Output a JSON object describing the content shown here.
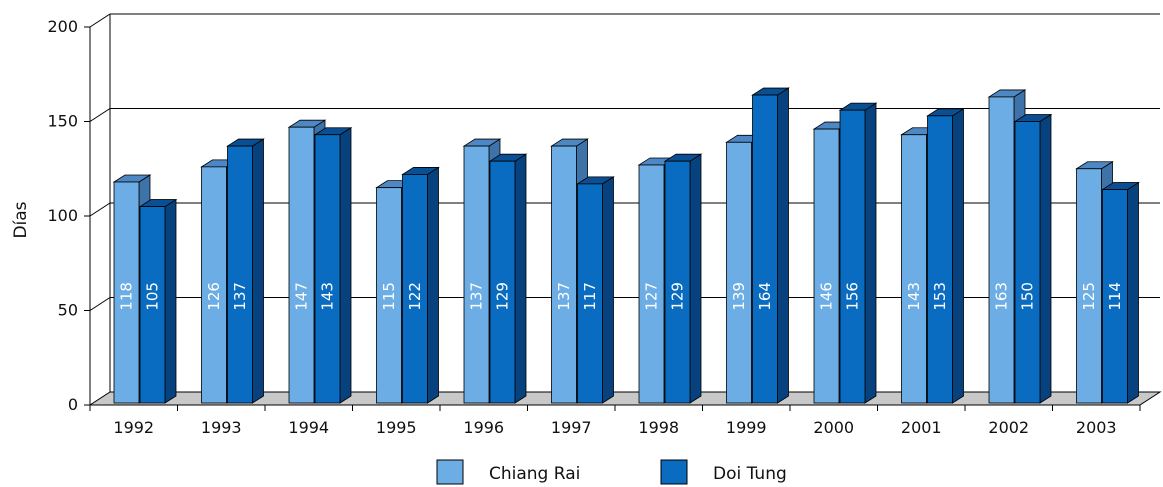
{
  "chart_data": {
    "type": "bar",
    "categories": [
      "1992",
      "1993",
      "1994",
      "1995",
      "1996",
      "1997",
      "1998",
      "1999",
      "2000",
      "2001",
      "2002",
      "2003"
    ],
    "series": [
      {
        "name": "Chiang Rai",
        "values": [
          118,
          126,
          147,
          115,
          137,
          137,
          127,
          139,
          146,
          143,
          163,
          125
        ]
      },
      {
        "name": "Doi Tung",
        "values": [
          105,
          137,
          143,
          122,
          129,
          117,
          129,
          164,
          156,
          153,
          150,
          114
        ]
      }
    ],
    "title": "",
    "xlabel": "",
    "ylabel": "Días",
    "ylim": [
      0,
      200
    ],
    "yticks": [
      "0",
      "50",
      "100",
      "150",
      "200"
    ],
    "grid": true,
    "legend": "bottom",
    "three_d": true
  },
  "colors": {
    "series": [
      "#6BADE4",
      "#0A6CC0"
    ],
    "series_top": [
      "#4D88C4",
      "#0A4F93"
    ],
    "series_side": [
      "#3E73AA",
      "#07427E"
    ],
    "floor": "#C8C8C8",
    "grid": "#000000"
  }
}
